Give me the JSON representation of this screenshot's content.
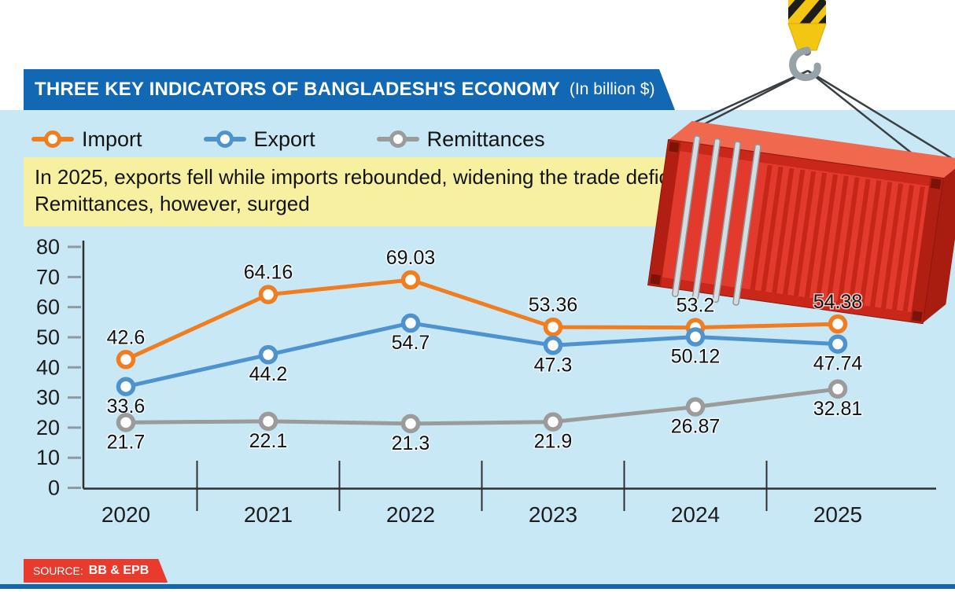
{
  "header": {
    "title": "THREE KEY INDICATORS OF BANGLADESH'S ECONOMY",
    "unit_note": "(In billion $)",
    "bar_color": "#1268b3"
  },
  "legend": [
    {
      "label": "Import",
      "color": "#f07d1f"
    },
    {
      "label": "Export",
      "color": "#4f93ce"
    },
    {
      "label": "Remittances",
      "color": "#9b9b9b"
    }
  ],
  "annotation": {
    "line1": "In 2025, exports fell while imports rebounded, widening the trade deficit.",
    "line2": "Remittances, however, surged",
    "bg_color": "#f7f0a0"
  },
  "source": {
    "prefix": "SOURCE:",
    "text": "BB & EPB",
    "bg_color": "#e93a2e"
  },
  "illustration": {
    "name": "red shipping container hanging from crane hook"
  },
  "chart_data": {
    "type": "line",
    "title": "THREE KEY INDICATORS OF BANGLADESH'S ECONOMY (In billion $)",
    "categories": [
      "2020",
      "2021",
      "2022",
      "2023",
      "2024",
      "2025"
    ],
    "series": [
      {
        "name": "Import",
        "color": "#f07d1f",
        "values": [
          42.6,
          64.16,
          69.03,
          53.36,
          53.2,
          54.38
        ]
      },
      {
        "name": "Export",
        "color": "#4f93ce",
        "values": [
          33.6,
          44.2,
          54.7,
          47.3,
          50.12,
          47.74
        ]
      },
      {
        "name": "Remittances",
        "color": "#9b9b9b",
        "values": [
          21.7,
          22.1,
          21.3,
          21.9,
          26.87,
          32.81
        ]
      }
    ],
    "xlabel": "",
    "ylabel": "",
    "ylim": [
      0,
      80
    ],
    "y_ticks": [
      0,
      10,
      20,
      30,
      40,
      50,
      60,
      70,
      80
    ],
    "grid": false,
    "legend_position": "top-left",
    "background_color": "#c9e8f6"
  }
}
